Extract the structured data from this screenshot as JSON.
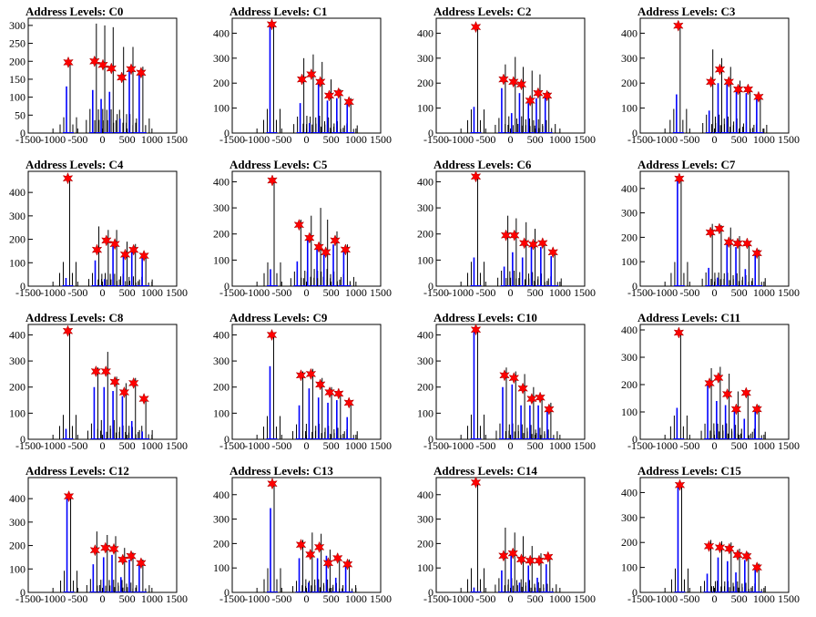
{
  "chart_data": [
    {
      "type": "histogram",
      "title": "Address Levels: C0",
      "xlim": [
        -1500,
        1500
      ],
      "ylim": [
        0,
        320
      ],
      "yticks": [
        0,
        50,
        100,
        150,
        200,
        250,
        300
      ],
      "xticks": [
        -1500,
        -1000,
        -500,
        0,
        500,
        1000,
        1500
      ],
      "peaks": [
        {
          "x": -690,
          "black": 200,
          "blue": 130,
          "marker": 197
        },
        {
          "x": -160,
          "black": 305,
          "blue": 120,
          "marker": 200
        },
        {
          "x": 10,
          "black": 300,
          "blue": 95,
          "marker": 190
        },
        {
          "x": 180,
          "black": 295,
          "blue": 115,
          "marker": 180
        },
        {
          "x": 390,
          "black": 240,
          "blue": 40,
          "marker": 155
        },
        {
          "x": 580,
          "black": 240,
          "blue": 185,
          "marker": 178
        },
        {
          "x": 780,
          "black": 185,
          "blue": 170,
          "marker": 168
        }
      ]
    },
    {
      "type": "histogram",
      "title": "Address Levels: C1",
      "xlim": [
        -1500,
        1500
      ],
      "ylim": [
        0,
        460
      ],
      "yticks": [
        0,
        100,
        200,
        300,
        400
      ],
      "xticks": [
        -1500,
        -1000,
        -500,
        0,
        500,
        1000,
        1500
      ],
      "peaks": [
        {
          "x": -700,
          "black": 440,
          "blue": 440,
          "marker": 435
        },
        {
          "x": -90,
          "black": 300,
          "blue": 120,
          "marker": 215
        },
        {
          "x": 100,
          "black": 315,
          "blue": 40,
          "marker": 235
        },
        {
          "x": 280,
          "black": 285,
          "blue": 210,
          "marker": 205
        },
        {
          "x": 460,
          "black": 215,
          "blue": 130,
          "marker": 150
        },
        {
          "x": 650,
          "black": 175,
          "blue": 140,
          "marker": 160
        },
        {
          "x": 860,
          "black": 140,
          "blue": 115,
          "marker": 125
        }
      ]
    },
    {
      "type": "histogram",
      "title": "Address Levels: C2",
      "xlim": [
        -1500,
        1500
      ],
      "ylim": [
        0,
        460
      ],
      "yticks": [
        0,
        100,
        200,
        300,
        400
      ],
      "xticks": [
        -1500,
        -1000,
        -500,
        0,
        500,
        1000,
        1500
      ],
      "peaks": [
        {
          "x": -700,
          "black": 430,
          "blue": 105,
          "marker": 425
        },
        {
          "x": -140,
          "black": 275,
          "blue": 180,
          "marker": 215
        },
        {
          "x": 60,
          "black": 305,
          "blue": 80,
          "marker": 205
        },
        {
          "x": 220,
          "black": 265,
          "blue": 160,
          "marker": 195
        },
        {
          "x": 400,
          "black": 250,
          "blue": 120,
          "marker": 130
        },
        {
          "x": 560,
          "black": 235,
          "blue": 140,
          "marker": 160
        },
        {
          "x": 740,
          "black": 165,
          "blue": 145,
          "marker": 150
        }
      ]
    },
    {
      "type": "histogram",
      "title": "Address Levels: C3",
      "xlim": [
        -1500,
        1500
      ],
      "ylim": [
        0,
        460
      ],
      "yticks": [
        0,
        100,
        200,
        300,
        400
      ],
      "xticks": [
        -1500,
        -1000,
        -500,
        0,
        500,
        1000,
        1500
      ],
      "peaks": [
        {
          "x": -730,
          "black": 440,
          "blue": 155,
          "marker": 430
        },
        {
          "x": -70,
          "black": 335,
          "blue": 90,
          "marker": 205
        },
        {
          "x": 110,
          "black": 300,
          "blue": 200,
          "marker": 255
        },
        {
          "x": 290,
          "black": 265,
          "blue": 195,
          "marker": 205
        },
        {
          "x": 480,
          "black": 210,
          "blue": 165,
          "marker": 175
        },
        {
          "x": 680,
          "black": 175,
          "blue": 160,
          "marker": 175
        },
        {
          "x": 890,
          "black": 150,
          "blue": 140,
          "marker": 145
        }
      ]
    },
    {
      "type": "histogram",
      "title": "Address Levels: C4",
      "xlim": [
        -1500,
        1500
      ],
      "ylim": [
        0,
        490
      ],
      "yticks": [
        0,
        100,
        200,
        300,
        400
      ],
      "xticks": [
        -1500,
        -1000,
        -500,
        0,
        500,
        1000,
        1500
      ],
      "peaks": [
        {
          "x": -700,
          "black": 470,
          "blue": 35,
          "marker": 460
        },
        {
          "x": -110,
          "black": 255,
          "blue": 110,
          "marker": 155
        },
        {
          "x": 80,
          "black": 240,
          "blue": 30,
          "marker": 195
        },
        {
          "x": 250,
          "black": 240,
          "blue": 170,
          "marker": 180
        },
        {
          "x": 460,
          "black": 190,
          "blue": 140,
          "marker": 135
        },
        {
          "x": 630,
          "black": 180,
          "blue": 165,
          "marker": 155
        },
        {
          "x": 840,
          "black": 130,
          "blue": 120,
          "marker": 130
        }
      ]
    },
    {
      "type": "histogram",
      "title": "Address Levels: C5",
      "xlim": [
        -1500,
        1500
      ],
      "ylim": [
        0,
        440
      ],
      "yticks": [
        0,
        100,
        200,
        300,
        400
      ],
      "xticks": [
        -1500,
        -1000,
        -500,
        0,
        500,
        1000,
        1500
      ],
      "peaks": [
        {
          "x": -690,
          "black": 415,
          "blue": 65,
          "marker": 405
        },
        {
          "x": -150,
          "black": 255,
          "blue": 95,
          "marker": 235
        },
        {
          "x": 60,
          "black": 270,
          "blue": 190,
          "marker": 185
        },
        {
          "x": 250,
          "black": 300,
          "blue": 150,
          "marker": 150
        },
        {
          "x": 390,
          "black": 255,
          "blue": 120,
          "marker": 130
        },
        {
          "x": 580,
          "black": 210,
          "blue": 160,
          "marker": 175
        },
        {
          "x": 790,
          "black": 160,
          "blue": 140,
          "marker": 140
        }
      ]
    },
    {
      "type": "histogram",
      "title": "Address Levels: C6",
      "xlim": [
        -1500,
        1500
      ],
      "ylim": [
        0,
        440
      ],
      "yticks": [
        0,
        100,
        200,
        300,
        400
      ],
      "xticks": [
        -1500,
        -1000,
        -500,
        0,
        500,
        1000,
        1500
      ],
      "peaks": [
        {
          "x": -700,
          "black": 425,
          "blue": 110,
          "marker": 420
        },
        {
          "x": -90,
          "black": 270,
          "blue": 75,
          "marker": 195
        },
        {
          "x": 80,
          "black": 260,
          "blue": 130,
          "marker": 195
        },
        {
          "x": 280,
          "black": 245,
          "blue": 110,
          "marker": 165
        },
        {
          "x": 460,
          "black": 220,
          "blue": 160,
          "marker": 160
        },
        {
          "x": 650,
          "black": 170,
          "blue": 150,
          "marker": 165
        },
        {
          "x": 860,
          "black": 135,
          "blue": 115,
          "marker": 130
        }
      ]
    },
    {
      "type": "histogram",
      "title": "Address Levels: C7",
      "xlim": [
        -1500,
        1500
      ],
      "ylim": [
        0,
        470
      ],
      "yticks": [
        0,
        100,
        200,
        300,
        400
      ],
      "xticks": [
        -1500,
        -1000,
        -500,
        0,
        500,
        1000,
        1500
      ],
      "peaks": [
        {
          "x": -710,
          "black": 450,
          "blue": 450,
          "marker": 440
        },
        {
          "x": -80,
          "black": 255,
          "blue": 75,
          "marker": 220
        },
        {
          "x": 100,
          "black": 250,
          "blue": 35,
          "marker": 235
        },
        {
          "x": 290,
          "black": 240,
          "blue": 185,
          "marker": 180
        },
        {
          "x": 470,
          "black": 205,
          "blue": 160,
          "marker": 175
        },
        {
          "x": 660,
          "black": 175,
          "blue": 70,
          "marker": 175
        },
        {
          "x": 860,
          "black": 150,
          "blue": 130,
          "marker": 135
        }
      ]
    },
    {
      "type": "histogram",
      "title": "Address Levels: C8",
      "xlim": [
        -1500,
        1500
      ],
      "ylim": [
        0,
        440
      ],
      "yticks": [
        0,
        100,
        200,
        300,
        400
      ],
      "xticks": [
        -1500,
        -1000,
        -500,
        0,
        500,
        1000,
        1500
      ],
      "peaks": [
        {
          "x": -700,
          "black": 425,
          "blue": 40,
          "marker": 415
        },
        {
          "x": -130,
          "black": 275,
          "blue": 200,
          "marker": 260
        },
        {
          "x": 70,
          "black": 335,
          "blue": 200,
          "marker": 260
        },
        {
          "x": 250,
          "black": 240,
          "blue": 185,
          "marker": 220
        },
        {
          "x": 440,
          "black": 215,
          "blue": 165,
          "marker": 180
        },
        {
          "x": 630,
          "black": 235,
          "blue": 70,
          "marker": 215
        },
        {
          "x": 840,
          "black": 160,
          "blue": 30,
          "marker": 155
        }
      ]
    },
    {
      "type": "histogram",
      "title": "Address Levels: C9",
      "xlim": [
        -1500,
        1500
      ],
      "ylim": [
        0,
        440
      ],
      "yticks": [
        0,
        100,
        200,
        300,
        400
      ],
      "xticks": [
        -1500,
        -1000,
        -500,
        0,
        500,
        1000,
        1500
      ],
      "peaks": [
        {
          "x": -700,
          "black": 405,
          "blue": 280,
          "marker": 400
        },
        {
          "x": -110,
          "black": 260,
          "blue": 130,
          "marker": 245
        },
        {
          "x": 90,
          "black": 270,
          "blue": 195,
          "marker": 250
        },
        {
          "x": 280,
          "black": 235,
          "blue": 160,
          "marker": 210
        },
        {
          "x": 470,
          "black": 200,
          "blue": 140,
          "marker": 180
        },
        {
          "x": 650,
          "black": 175,
          "blue": 150,
          "marker": 175
        },
        {
          "x": 860,
          "black": 140,
          "blue": 85,
          "marker": 140
        }
      ]
    },
    {
      "type": "histogram",
      "title": "Address Levels: C10",
      "xlim": [
        -1500,
        1500
      ],
      "ylim": [
        0,
        440
      ],
      "yticks": [
        0,
        100,
        200,
        300,
        400
      ],
      "xticks": [
        -1500,
        -1000,
        -500,
        0,
        500,
        1000,
        1500
      ],
      "peaks": [
        {
          "x": -700,
          "black": 430,
          "blue": 430,
          "marker": 420
        },
        {
          "x": -120,
          "black": 275,
          "blue": 200,
          "marker": 245
        },
        {
          "x": 70,
          "black": 260,
          "blue": 210,
          "marker": 235
        },
        {
          "x": 250,
          "black": 250,
          "blue": 130,
          "marker": 195
        },
        {
          "x": 430,
          "black": 200,
          "blue": 130,
          "marker": 155
        },
        {
          "x": 600,
          "black": 170,
          "blue": 130,
          "marker": 160
        },
        {
          "x": 780,
          "black": 140,
          "blue": 110,
          "marker": 115
        }
      ]
    },
    {
      "type": "histogram",
      "title": "Address Levels: C11",
      "xlim": [
        -1500,
        1500
      ],
      "ylim": [
        0,
        420
      ],
      "yticks": [
        0,
        100,
        200,
        300,
        400
      ],
      "xticks": [
        -1500,
        -1000,
        -500,
        0,
        500,
        1000,
        1500
      ],
      "peaks": [
        {
          "x": -720,
          "black": 395,
          "blue": 115,
          "marker": 390
        },
        {
          "x": -100,
          "black": 260,
          "blue": 200,
          "marker": 205
        },
        {
          "x": 80,
          "black": 265,
          "blue": 140,
          "marker": 225
        },
        {
          "x": 260,
          "black": 240,
          "blue": 125,
          "marker": 165
        },
        {
          "x": 440,
          "black": 175,
          "blue": 110,
          "marker": 110
        },
        {
          "x": 640,
          "black": 175,
          "blue": 75,
          "marker": 170
        },
        {
          "x": 860,
          "black": 125,
          "blue": 115,
          "marker": 110
        }
      ]
    },
    {
      "type": "histogram",
      "title": "Address Levels: C12",
      "xlim": [
        -1500,
        1500
      ],
      "ylim": [
        0,
        490
      ],
      "yticks": [
        0,
        100,
        200,
        300,
        400
      ],
      "xticks": [
        -1500,
        -1000,
        -500,
        0,
        500,
        1000,
        1500
      ],
      "peaks": [
        {
          "x": -680,
          "black": 420,
          "blue": 420,
          "marker": 410
        },
        {
          "x": -150,
          "black": 260,
          "blue": 120,
          "marker": 180
        },
        {
          "x": 60,
          "black": 245,
          "blue": 150,
          "marker": 190
        },
        {
          "x": 230,
          "black": 240,
          "blue": 160,
          "marker": 185
        },
        {
          "x": 410,
          "black": 190,
          "blue": 65,
          "marker": 140
        },
        {
          "x": 580,
          "black": 170,
          "blue": 140,
          "marker": 155
        },
        {
          "x": 780,
          "black": 140,
          "blue": 125,
          "marker": 125
        }
      ]
    },
    {
      "type": "histogram",
      "title": "Address Levels: C13",
      "xlim": [
        -1500,
        1500
      ],
      "ylim": [
        0,
        470
      ],
      "yticks": [
        0,
        100,
        200,
        300,
        400
      ],
      "xticks": [
        -1500,
        -1000,
        -500,
        0,
        500,
        1000,
        1500
      ],
      "peaks": [
        {
          "x": -690,
          "black": 450,
          "blue": 345,
          "marker": 445
        },
        {
          "x": -110,
          "black": 215,
          "blue": 140,
          "marker": 195
        },
        {
          "x": 80,
          "black": 245,
          "blue": 40,
          "marker": 155
        },
        {
          "x": 260,
          "black": 240,
          "blue": 140,
          "marker": 185
        },
        {
          "x": 440,
          "black": 175,
          "blue": 150,
          "marker": 120
        },
        {
          "x": 630,
          "black": 140,
          "blue": 60,
          "marker": 140
        },
        {
          "x": 830,
          "black": 135,
          "blue": 115,
          "marker": 115
        }
      ]
    },
    {
      "type": "histogram",
      "title": "Address Levels: C14",
      "xlim": [
        -1500,
        1500
      ],
      "ylim": [
        0,
        470
      ],
      "yticks": [
        0,
        100,
        200,
        300,
        400
      ],
      "xticks": [
        -1500,
        -1000,
        -500,
        0,
        500,
        1000,
        1500
      ],
      "peaks": [
        {
          "x": -700,
          "black": 450,
          "blue": 20,
          "marker": 450
        },
        {
          "x": -140,
          "black": 265,
          "blue": 90,
          "marker": 150
        },
        {
          "x": 50,
          "black": 245,
          "blue": 150,
          "marker": 160
        },
        {
          "x": 220,
          "black": 230,
          "blue": 40,
          "marker": 135
        },
        {
          "x": 400,
          "black": 190,
          "blue": 110,
          "marker": 130
        },
        {
          "x": 580,
          "black": 160,
          "blue": 60,
          "marker": 130
        },
        {
          "x": 760,
          "black": 150,
          "blue": 115,
          "marker": 145
        }
      ]
    },
    {
      "type": "histogram",
      "title": "Address Levels: C15",
      "xlim": [
        -1500,
        1500
      ],
      "ylim": [
        0,
        460
      ],
      "yticks": [
        0,
        100,
        200,
        300,
        400
      ],
      "xticks": [
        -1500,
        -1000,
        -500,
        0,
        500,
        1000,
        1500
      ],
      "peaks": [
        {
          "x": -700,
          "black": 435,
          "blue": 435,
          "marker": 430
        },
        {
          "x": -110,
          "black": 210,
          "blue": 75,
          "marker": 185
        },
        {
          "x": 110,
          "black": 205,
          "blue": 140,
          "marker": 180
        },
        {
          "x": 300,
          "black": 200,
          "blue": 125,
          "marker": 175
        },
        {
          "x": 470,
          "black": 175,
          "blue": 80,
          "marker": 150
        },
        {
          "x": 650,
          "black": 160,
          "blue": 130,
          "marker": 145
        },
        {
          "x": 860,
          "black": 115,
          "blue": 90,
          "marker": 100
        }
      ]
    }
  ],
  "colors": {
    "trace_black": "#000000",
    "trace_blue": "#0000ff",
    "marker": "#ff0000",
    "axis": "#000000"
  }
}
